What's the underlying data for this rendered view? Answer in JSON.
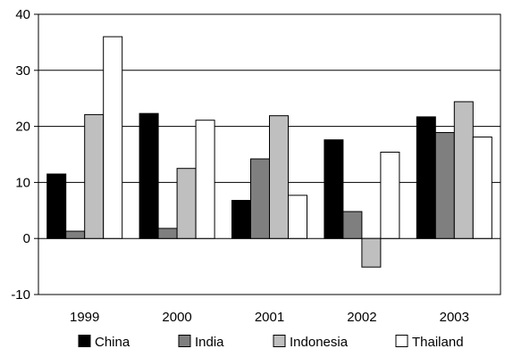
{
  "chart_data": {
    "type": "bar",
    "title": "",
    "xlabel": "",
    "ylabel": "",
    "categories": [
      "1999",
      "2000",
      "2001",
      "2002",
      "2003"
    ],
    "ylim": [
      -10,
      40
    ],
    "yticks": [
      -10,
      0,
      10,
      20,
      30,
      40
    ],
    "grid": "horizontal",
    "legend_position": "bottom",
    "series": [
      {
        "name": "China",
        "color": "#000000",
        "values": [
          11.5,
          22.3,
          6.8,
          17.6,
          21.7
        ]
      },
      {
        "name": "India",
        "color": "#7f7f7f",
        "values": [
          1.3,
          1.8,
          14.2,
          4.8,
          18.9
        ]
      },
      {
        "name": "Indonesia",
        "color": "#bfbfbf",
        "values": [
          22.1,
          12.5,
          21.9,
          -5.1,
          24.4
        ]
      },
      {
        "name": "Thailand",
        "color": "#ffffff",
        "values": [
          36.0,
          21.1,
          7.7,
          15.4,
          18.1
        ]
      }
    ]
  }
}
